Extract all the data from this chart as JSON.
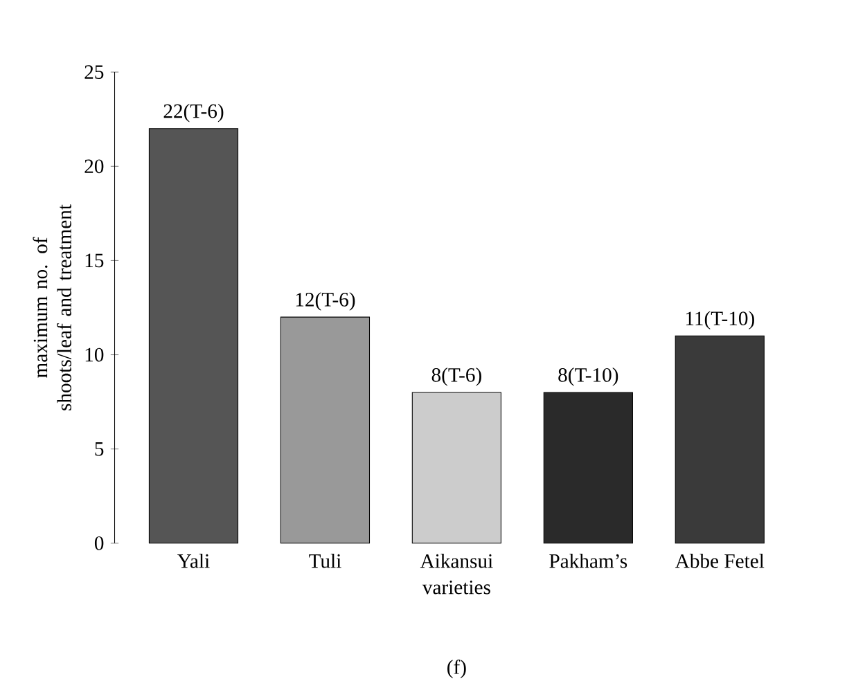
{
  "chart_data": {
    "type": "bar",
    "xlabel": "varieties",
    "ylabel": "maximum no. of shoots/leaf and treatment",
    "categories": [
      "Yali",
      "Tuli",
      "Aikansui",
      "Pakham’s",
      "Abbe Fetel"
    ],
    "values": [
      22,
      12,
      8,
      8,
      11
    ],
    "colors": [
      "#555555",
      "#999999",
      "#cccccc",
      "#2a2a2a",
      "#3a3a3a"
    ],
    "value_labels": [
      "22(T-6)",
      "12(T-6)",
      "8(T-6)",
      "8(T-10)",
      "11(T-10)"
    ],
    "ylim": [
      0,
      25
    ],
    "yticks": [
      0,
      5,
      10,
      15,
      20,
      25
    ],
    "annotations": [
      "(f)"
    ]
  }
}
